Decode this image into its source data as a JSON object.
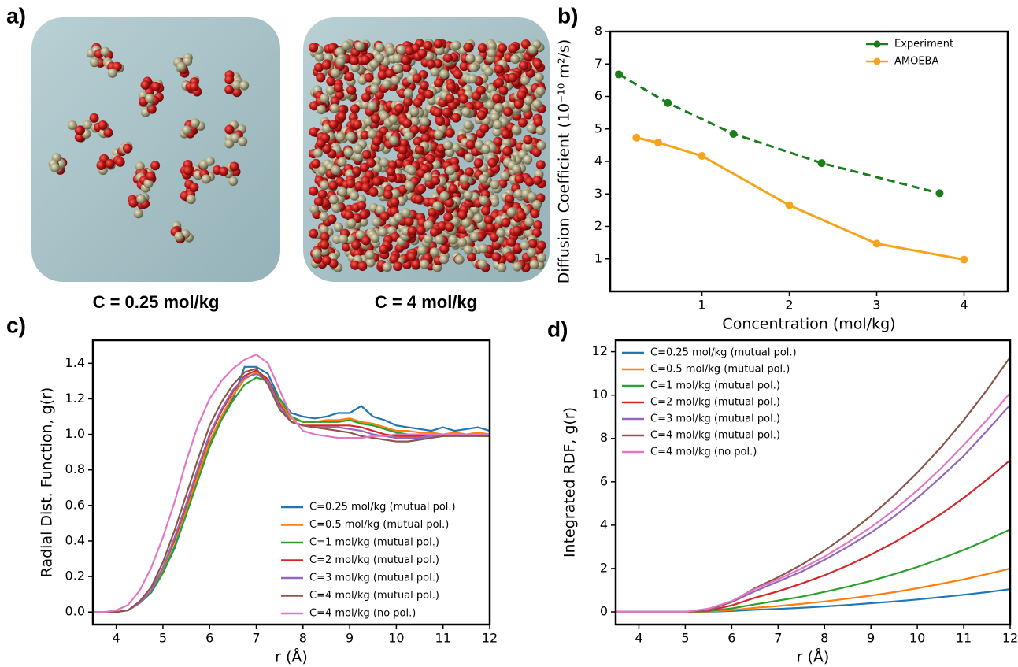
{
  "panel_labels": [
    "a)",
    "b)",
    "c)",
    "d)"
  ],
  "panel_a": {
    "captions": [
      "C = 0.25 mol/kg",
      "C = 4 mol/kg"
    ]
  },
  "chart_data": [
    {
      "type": "line",
      "xlabel": "Concentration (mol/kg)",
      "ylabel": "Diffusion Coefficient (10⁻¹⁰ m²/s)",
      "xlim": [
        -0.05,
        4.5
      ],
      "xticks": [
        1,
        2,
        3,
        4
      ],
      "ylim": [
        0,
        8
      ],
      "yticks": [
        1,
        2,
        3,
        4,
        5,
        6,
        7,
        8
      ],
      "legend": "upper right",
      "markers": true,
      "series": [
        {
          "name": "Experiment",
          "color": "#1b7d1b",
          "dashed": true,
          "x": [
            0.05,
            0.61,
            1.36,
            2.37,
            3.72
          ],
          "values": [
            6.68,
            5.8,
            4.85,
            3.95,
            3.02
          ]
        },
        {
          "name": "AMOEBA",
          "color": "#f5a51c",
          "dashed": false,
          "x": [
            0.25,
            0.5,
            1,
            2,
            3,
            4
          ],
          "values": [
            4.73,
            4.58,
            4.17,
            2.65,
            1.47,
            0.98
          ]
        }
      ]
    },
    {
      "type": "line",
      "xlabel": "r (Å)",
      "ylabel": "Radial Dist. Function, g(r)",
      "xlim": [
        3.5,
        12
      ],
      "xticks": [
        4,
        5,
        6,
        7,
        8,
        9,
        10,
        11,
        12
      ],
      "ylim": [
        -0.07,
        1.53
      ],
      "yticks": [
        {
          "value": 0,
          "label": "0.0"
        },
        0.2,
        0.4,
        0.6,
        0.8,
        {
          "value": 1,
          "label": "1.0"
        },
        1.2,
        1.4
      ],
      "legend": "lower right",
      "markers": false,
      "x": [
        3.5,
        3.75,
        4,
        4.25,
        4.5,
        4.75,
        5,
        5.25,
        5.5,
        5.75,
        6,
        6.25,
        6.5,
        6.75,
        7,
        7.25,
        7.5,
        7.75,
        8,
        8.25,
        8.5,
        8.75,
        9,
        9.25,
        9.5,
        9.75,
        10,
        10.25,
        10.5,
        10.75,
        11,
        11.25,
        11.5,
        11.75,
        12
      ],
      "series": [
        {
          "name": "C=0.25 mol/kg (mutual pol.)",
          "color": "#1f77b4",
          "values": [
            0,
            0,
            0,
            0.01,
            0.05,
            0.11,
            0.22,
            0.36,
            0.55,
            0.75,
            0.94,
            1.09,
            1.2,
            1.38,
            1.38,
            1.34,
            1.2,
            1.12,
            1.1,
            1.09,
            1.1,
            1.12,
            1.12,
            1.16,
            1.1,
            1.08,
            1.05,
            1.04,
            1.03,
            1.02,
            1.04,
            1.02,
            1.03,
            1.04,
            1.02
          ]
        },
        {
          "name": "C=0.5 mol/kg (mutual pol.)",
          "color": "#ff7f0e",
          "values": [
            0,
            0,
            0,
            0.01,
            0.05,
            0.12,
            0.24,
            0.4,
            0.58,
            0.77,
            0.96,
            1.1,
            1.22,
            1.31,
            1.35,
            1.31,
            1.18,
            1.09,
            1.07,
            1.07,
            1.08,
            1.08,
            1.09,
            1.07,
            1.06,
            1.04,
            1.02,
            1.02,
            1.01,
            1.01,
            1,
            1.01,
            1,
            1.01,
            1
          ]
        },
        {
          "name": "C=1 mol/kg (mutual pol.)",
          "color": "#2ca02c",
          "values": [
            0,
            0,
            0,
            0.01,
            0.05,
            0.11,
            0.22,
            0.37,
            0.55,
            0.74,
            0.93,
            1.08,
            1.19,
            1.28,
            1.32,
            1.3,
            1.2,
            1.1,
            1.07,
            1.07,
            1.07,
            1.07,
            1.08,
            1.06,
            1.05,
            1.03,
            1.01,
            1,
            1,
            1,
            1,
            1,
            1,
            0.99,
            0.99
          ]
        },
        {
          "name": "C=2 mol/kg (mutual pol.)",
          "color": "#d62728",
          "values": [
            0,
            0,
            0,
            0.01,
            0.05,
            0.12,
            0.25,
            0.41,
            0.6,
            0.8,
            0.99,
            1.13,
            1.24,
            1.33,
            1.36,
            1.31,
            1.17,
            1.07,
            1.05,
            1.05,
            1.05,
            1.05,
            1.05,
            1.04,
            1.02,
            1,
            0.99,
            0.99,
            0.99,
            1,
            1,
            1,
            1,
            1,
            1
          ]
        },
        {
          "name": "C=3 mol/kg (mutual pol.)",
          "color": "#9467bd",
          "values": [
            0,
            0,
            0,
            0.01,
            0.05,
            0.12,
            0.25,
            0.42,
            0.61,
            0.81,
            1,
            1.14,
            1.25,
            1.32,
            1.34,
            1.3,
            1.16,
            1.07,
            1.05,
            1.04,
            1.04,
            1.04,
            1.03,
            1.02,
            1,
            0.99,
            0.98,
            0.98,
            0.98,
            0.99,
            0.99,
            1,
            1,
            1,
            1
          ]
        },
        {
          "name": "C=4 mol/kg (mutual pol.)",
          "color": "#8c564b",
          "values": [
            0,
            0,
            0,
            0.01,
            0.06,
            0.14,
            0.28,
            0.46,
            0.66,
            0.86,
            1.05,
            1.18,
            1.28,
            1.35,
            1.37,
            1.28,
            1.14,
            1.07,
            1.05,
            1.04,
            1.03,
            1.02,
            1.01,
            0.99,
            0.98,
            0.97,
            0.96,
            0.96,
            0.97,
            0.98,
            0.99,
            0.99,
            0.99,
            0.99,
            0.99
          ]
        },
        {
          "name": "C=4 mol/kg (no pol.)",
          "color": "#e377c2",
          "values": [
            0,
            0,
            0.01,
            0.04,
            0.12,
            0.25,
            0.42,
            0.62,
            0.85,
            1.05,
            1.2,
            1.3,
            1.37,
            1.42,
            1.45,
            1.4,
            1.25,
            1.1,
            1.02,
            1,
            0.99,
            0.98,
            0.98,
            0.98,
            0.99,
            0.99,
            1,
            1,
            1,
            1,
            1,
            1,
            1,
            1,
            1
          ]
        }
      ]
    },
    {
      "type": "line",
      "xlabel": "r (Å)",
      "ylabel": "Integrated RDF, g(r)",
      "xlim": [
        3.5,
        12
      ],
      "xticks": [
        4,
        5,
        6,
        7,
        8,
        9,
        10,
        11,
        12
      ],
      "ylim": [
        -0.58,
        12.53
      ],
      "yticks": [
        0,
        2,
        4,
        6,
        8,
        10,
        12
      ],
      "legend": "upper left",
      "markers": false,
      "x": [
        3.5,
        4,
        4.5,
        5,
        5.5,
        6,
        6.5,
        7,
        7.5,
        8,
        8.5,
        9,
        9.5,
        10,
        10.5,
        11,
        11.5,
        12
      ],
      "series": [
        {
          "name": "C=0.25 mol/kg (mutual pol.)",
          "color": "#1f77b4",
          "values": [
            0,
            0,
            0,
            0,
            0.01,
            0.04,
            0.1,
            0.14,
            0.19,
            0.25,
            0.32,
            0.4,
            0.48,
            0.57,
            0.68,
            0.79,
            0.91,
            1.05
          ]
        },
        {
          "name": "C=0.5 mol/kg (mutual pol.)",
          "color": "#ff7f0e",
          "values": [
            0,
            0,
            0,
            0,
            0.02,
            0.08,
            0.19,
            0.27,
            0.37,
            0.48,
            0.61,
            0.75,
            0.91,
            1.09,
            1.29,
            1.5,
            1.74,
            2
          ]
        },
        {
          "name": "C=1 mol/kg (mutual pol.)",
          "color": "#2ca02c",
          "values": [
            0,
            0,
            0,
            0,
            0.04,
            0.16,
            0.35,
            0.52,
            0.7,
            0.92,
            1.16,
            1.43,
            1.74,
            2.07,
            2.45,
            2.86,
            3.31,
            3.8
          ]
        },
        {
          "name": "C=2 mol/kg (mutual pol.)",
          "color": "#d62728",
          "values": [
            0,
            0,
            0,
            0,
            0.07,
            0.3,
            0.65,
            0.95,
            1.3,
            1.69,
            2.14,
            2.64,
            3.2,
            3.82,
            4.5,
            5.26,
            6.1,
            7
          ]
        },
        {
          "name": "C=3 mol/kg (mutual pol.)",
          "color": "#9467bd",
          "values": [
            0,
            0,
            0,
            0,
            0.1,
            0.45,
            0.95,
            1.4,
            1.85,
            2.4,
            3,
            3.65,
            4.4,
            5.25,
            6.2,
            7.2,
            8.35,
            9.55
          ]
        },
        {
          "name": "C=4 mol/kg (mutual pol.)",
          "color": "#8c564b",
          "values": [
            0,
            0,
            0,
            0,
            0.12,
            0.47,
            1.09,
            1.6,
            2.17,
            2.83,
            3.58,
            4.43,
            5.37,
            6.42,
            7.57,
            8.84,
            10.23,
            11.75
          ]
        },
        {
          "name": "C=4 mol/kg (no pol.)",
          "color": "#e377c2",
          "values": [
            0,
            0,
            0,
            0,
            0.15,
            0.5,
            1.05,
            1.5,
            2,
            2.55,
            3.2,
            3.9,
            4.7,
            5.6,
            6.6,
            7.7,
            8.85,
            10.1
          ]
        }
      ]
    }
  ]
}
